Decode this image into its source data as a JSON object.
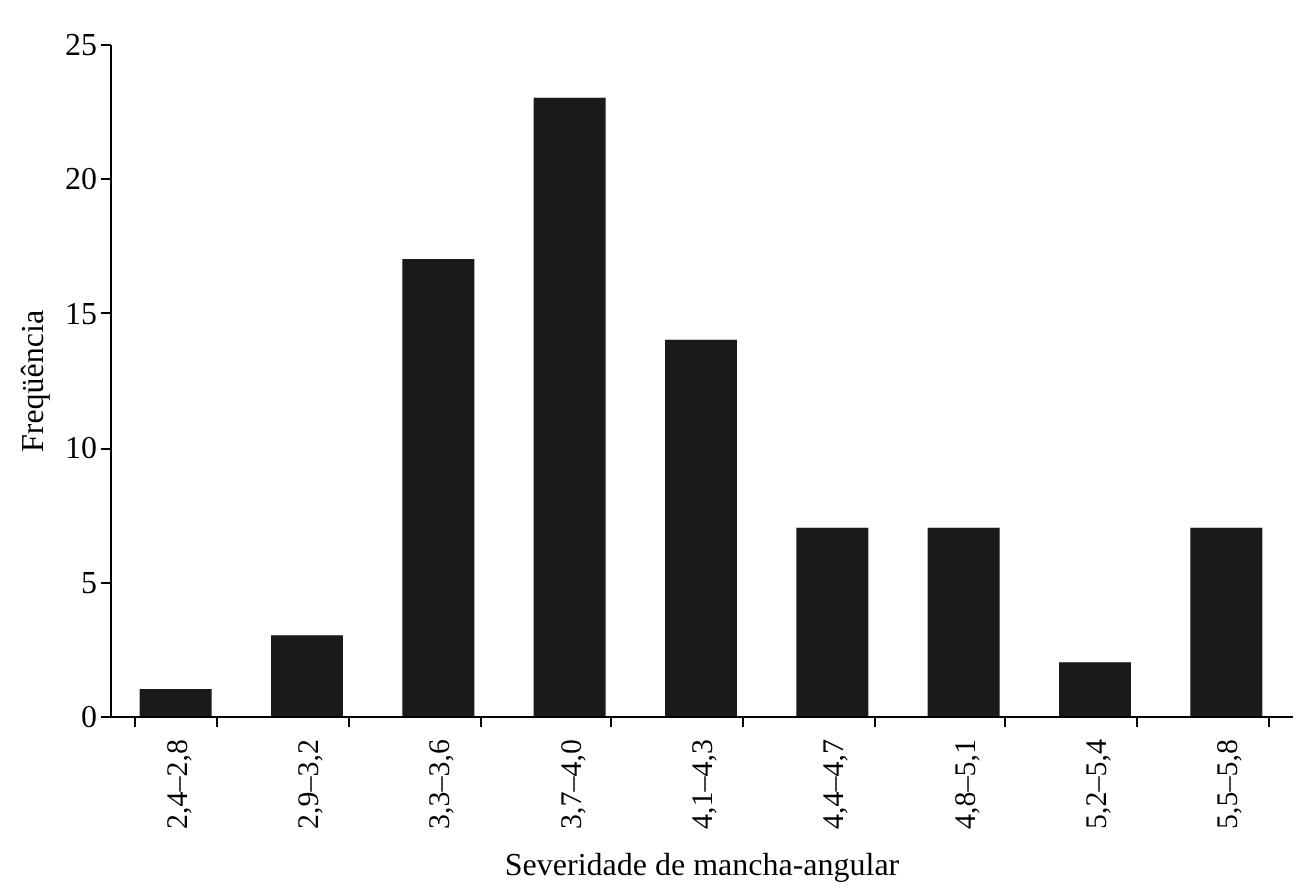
{
  "chart_data": {
    "type": "bar",
    "categories": [
      "2,4–2,8",
      "2,9–3,2",
      "3,3–3,6",
      "3,7–4,0",
      "4,1–4,3",
      "4,4–4,7",
      "4,8–5,1",
      "5,2–5,4",
      "5,5–5,8"
    ],
    "values": [
      1,
      3,
      17,
      23,
      14,
      7,
      7,
      2,
      7
    ],
    "color": "#1a1a1a",
    "xlabel": "Severidade de mancha-angular",
    "ylabel": "Freqüência",
    "ylim": [
      0,
      25
    ],
    "yticks": [
      0,
      5,
      10,
      15,
      20,
      25
    ],
    "grid": false
  }
}
